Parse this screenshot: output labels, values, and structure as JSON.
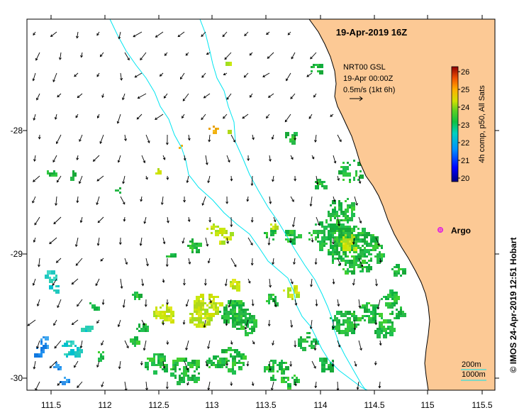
{
  "title": "19-Apr-2019 16Z",
  "annotation": {
    "line1": "NRT00 GSL",
    "line2": "19-Apr 00:00Z",
    "line3": "0.5m/s (1kt 6h)"
  },
  "colorbar": {
    "label": "4h comp, p50, All Sats",
    "ticks": [
      "26",
      "25",
      "24",
      "23",
      "22",
      "21",
      "20"
    ],
    "min": 20,
    "max": 26.3
  },
  "argo": {
    "label": "Argo",
    "color": "#e020e0",
    "lon": 115.12,
    "lat": -28.84
  },
  "depth_legend": {
    "line1": "200m",
    "line2": "1000m"
  },
  "credit": "© IMOS 24-Apr-2019 12:51 Hobart",
  "axes": {
    "x_ticks": [
      "111.5",
      "112",
      "112.5",
      "113",
      "113.5",
      "114",
      "114.5",
      "115",
      "115.5"
    ],
    "y_ticks": [
      "-28",
      "-29",
      "-30"
    ],
    "xlim": [
      111.32,
      115.65
    ],
    "ylim": [
      -30.1,
      -27.12
    ]
  },
  "colors": {
    "land": "#fcc995",
    "coast": "#000000",
    "isobath": "#00e5f0"
  }
}
